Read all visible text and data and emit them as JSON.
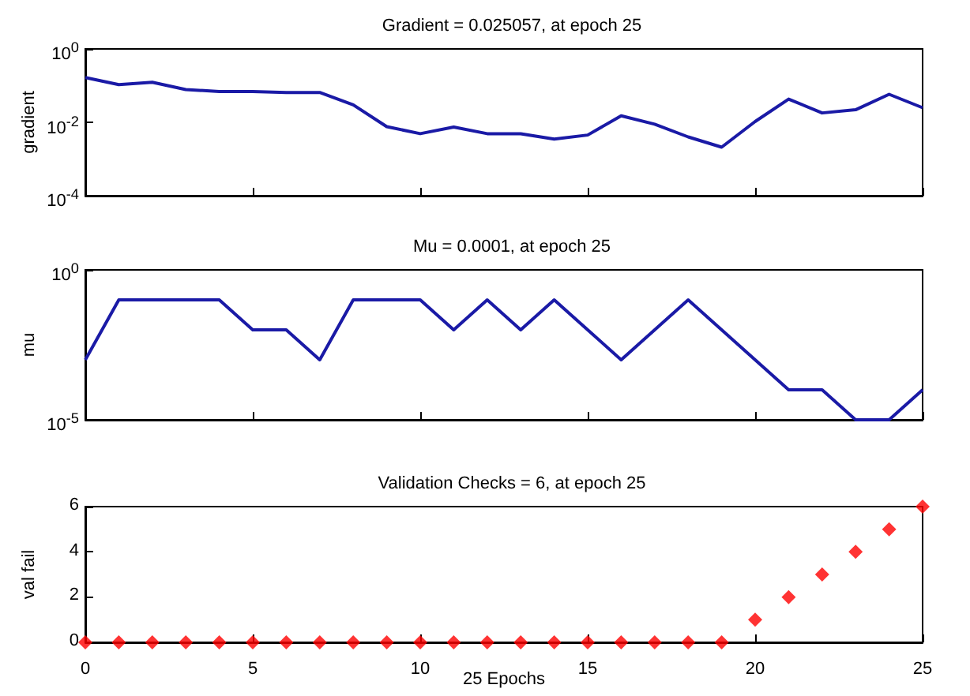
{
  "chart_data": [
    {
      "type": "line",
      "title": "Gradient = 0.025057, at epoch 25",
      "ylabel": "gradient",
      "log": true,
      "x": [
        0,
        1,
        2,
        3,
        4,
        5,
        6,
        7,
        8,
        9,
        10,
        11,
        12,
        13,
        14,
        15,
        16,
        17,
        18,
        19,
        20,
        21,
        22,
        23,
        24,
        25
      ],
      "series": [
        {
          "color": "#1a1aa6",
          "values": [
            0.166,
            0.106,
            0.123,
            0.078,
            0.069,
            0.069,
            0.065,
            0.065,
            0.03,
            0.0076,
            0.0049,
            0.0074,
            0.0049,
            0.0049,
            0.0035,
            0.0045,
            0.015,
            0.0089,
            0.004,
            0.0021,
            0.0105,
            0.043,
            0.018,
            0.022,
            0.058,
            0.025
          ]
        }
      ],
      "xlim": [
        0,
        25
      ],
      "xticks": [
        0,
        5,
        10,
        15,
        20,
        25
      ],
      "ylim": [
        0.0001,
        1
      ],
      "yticks": [
        {
          "value": 1,
          "label": "10$^{0}$"
        },
        {
          "value": 0.01,
          "label": "10$^{-2}$"
        },
        {
          "value": 0.0001,
          "label": "10$^{-4}$"
        }
      ],
      "tick_labels": "y",
      "grid": false
    },
    {
      "type": "line",
      "title": "Mu = 0.0001, at epoch 25",
      "ylabel": "mu",
      "log": true,
      "x": [
        0,
        1,
        2,
        3,
        4,
        5,
        6,
        7,
        8,
        9,
        10,
        11,
        12,
        13,
        14,
        15,
        16,
        17,
        18,
        19,
        20,
        21,
        22,
        23,
        24,
        25
      ],
      "series": [
        {
          "color": "#1a1aa6",
          "values": [
            0.001,
            0.1,
            0.1,
            0.1,
            0.1,
            0.01,
            0.01,
            0.001,
            0.1,
            0.1,
            0.1,
            0.01,
            0.1,
            0.01,
            0.1,
            0.01,
            0.001,
            0.01,
            0.1,
            0.01,
            0.001,
            0.0001,
            0.0001,
            1e-05,
            1e-05,
            0.0001
          ]
        }
      ],
      "xlim": [
        0,
        25
      ],
      "xticks": [
        0,
        5,
        10,
        15,
        20,
        25
      ],
      "ylim": [
        1e-05,
        1
      ],
      "yticks": [
        {
          "value": 1,
          "label": "10$^{0}$"
        },
        {
          "value": 1e-05,
          "label": "10$^{-5}$"
        }
      ],
      "tick_labels": "y",
      "grid": false
    },
    {
      "type": "scatter",
      "title": "Validation Checks = 6, at epoch 25",
      "xlabel": "25 Epochs",
      "ylabel": "val fail",
      "marker": "diamond",
      "x": [
        0,
        1,
        2,
        3,
        4,
        5,
        6,
        7,
        8,
        9,
        10,
        11,
        12,
        13,
        14,
        15,
        16,
        17,
        18,
        19,
        20,
        21,
        22,
        23,
        24,
        25
      ],
      "series": [
        {
          "color": "#ff0000",
          "values": [
            0,
            0,
            0,
            0,
            0,
            0,
            0,
            0,
            0,
            0,
            0,
            0,
            0,
            0,
            0,
            0,
            0,
            0,
            0,
            0,
            1,
            2,
            3,
            4,
            5,
            6
          ]
        }
      ],
      "xlim": [
        0,
        25
      ],
      "xticks": [
        0,
        5,
        10,
        15,
        20,
        25
      ],
      "ylim": [
        0,
        6
      ],
      "yticks": [
        0,
        2,
        4,
        6
      ],
      "grid": false
    }
  ]
}
